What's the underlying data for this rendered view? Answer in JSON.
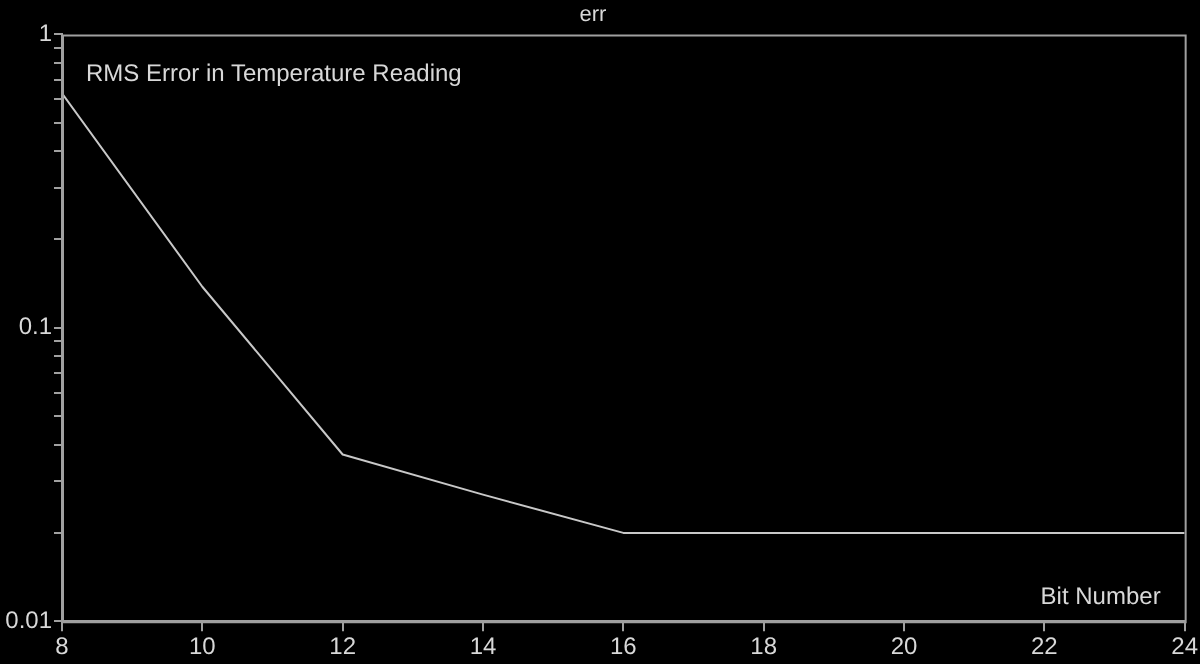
{
  "chart_data": {
    "type": "line",
    "title": "err",
    "xlabel": "Bit Number",
    "annotations": [
      "RMS Error in Temperature Reading"
    ],
    "x": [
      8,
      10,
      12,
      14,
      16,
      18,
      20,
      22,
      24
    ],
    "series": [
      {
        "color": "#c8c8c8",
        "values": [
          0.63,
          0.138,
          0.037,
          0.027,
          0.02,
          0.02,
          0.02,
          0.02,
          0.02
        ]
      }
    ],
    "log": "y",
    "xlim": [
      8,
      24
    ],
    "xticks": [
      8,
      10,
      12,
      14,
      16,
      18,
      20,
      22,
      24
    ],
    "ylim": [
      0.01,
      1
    ],
    "yticks": [
      0.01,
      {
        "value": 0.02,
        "label": null
      },
      {
        "value": 0.03,
        "label": null
      },
      {
        "value": 0.04,
        "label": null
      },
      {
        "value": 0.05,
        "label": null
      },
      {
        "value": 0.06,
        "label": null
      },
      {
        "value": 0.07,
        "label": null
      },
      {
        "value": 0.08,
        "label": null
      },
      {
        "value": 0.09,
        "label": null
      },
      0.1,
      {
        "value": 0.2,
        "label": null
      },
      {
        "value": 0.3,
        "label": null
      },
      {
        "value": 0.4,
        "label": null
      },
      {
        "value": 0.5,
        "label": null
      },
      {
        "value": 0.6,
        "label": null
      },
      {
        "value": 0.7,
        "label": null
      },
      {
        "value": 0.8,
        "label": null
      },
      {
        "value": 0.9,
        "label": null
      },
      1
    ],
    "grid": false,
    "legend": false,
    "marker": "none",
    "line_style": "solid"
  }
}
